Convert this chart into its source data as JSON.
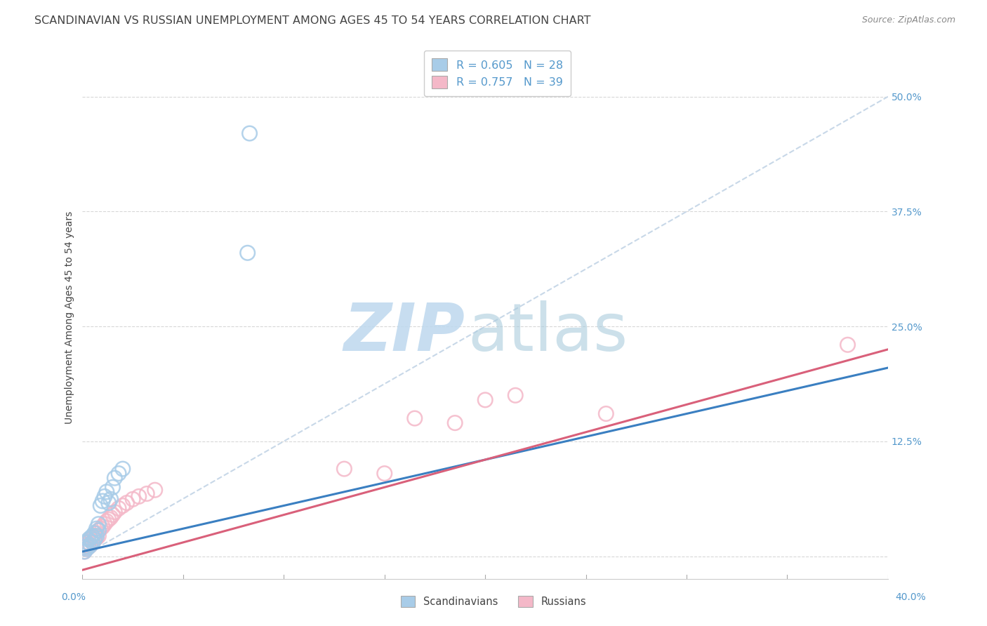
{
  "title": "SCANDINAVIAN VS RUSSIAN UNEMPLOYMENT AMONG AGES 45 TO 54 YEARS CORRELATION CHART",
  "source": "Source: ZipAtlas.com",
  "ylabel": "Unemployment Among Ages 45 to 54 years",
  "yticks": [
    0.0,
    0.125,
    0.25,
    0.375,
    0.5
  ],
  "ytick_labels": [
    "",
    "12.5%",
    "25.0%",
    "37.5%",
    "50.0%"
  ],
  "xlim": [
    0.0,
    0.4
  ],
  "ylim": [
    -0.025,
    0.545
  ],
  "blue_line": [
    0.0,
    0.005,
    0.4,
    0.205
  ],
  "pink_line": [
    0.0,
    -0.015,
    0.4,
    0.225
  ],
  "diag_line": [
    0.0,
    0.0,
    0.4,
    0.5
  ],
  "scandinavians_x": [
    0.001,
    0.001,
    0.002,
    0.002,
    0.003,
    0.003,
    0.004,
    0.004,
    0.005,
    0.005,
    0.006,
    0.006,
    0.007,
    0.007,
    0.008,
    0.008,
    0.009,
    0.01,
    0.011,
    0.012,
    0.013,
    0.014,
    0.015,
    0.016,
    0.018,
    0.02,
    0.082,
    0.083
  ],
  "scandinavians_y": [
    0.005,
    0.01,
    0.008,
    0.015,
    0.01,
    0.018,
    0.012,
    0.02,
    0.015,
    0.022,
    0.018,
    0.025,
    0.022,
    0.03,
    0.028,
    0.035,
    0.055,
    0.06,
    0.065,
    0.07,
    0.058,
    0.062,
    0.075,
    0.085,
    0.09,
    0.095,
    0.33,
    0.46
  ],
  "russians_x": [
    0.001,
    0.001,
    0.002,
    0.002,
    0.003,
    0.003,
    0.004,
    0.004,
    0.005,
    0.005,
    0.006,
    0.006,
    0.007,
    0.007,
    0.008,
    0.008,
    0.009,
    0.01,
    0.011,
    0.012,
    0.013,
    0.014,
    0.015,
    0.016,
    0.018,
    0.02,
    0.022,
    0.025,
    0.028,
    0.032,
    0.036,
    0.13,
    0.15,
    0.165,
    0.185,
    0.2,
    0.215,
    0.26,
    0.38
  ],
  "russians_y": [
    0.005,
    0.01,
    0.008,
    0.012,
    0.01,
    0.015,
    0.012,
    0.018,
    0.015,
    0.02,
    0.018,
    0.022,
    0.02,
    0.025,
    0.022,
    0.028,
    0.03,
    0.032,
    0.035,
    0.038,
    0.04,
    0.042,
    0.045,
    0.048,
    0.052,
    0.055,
    0.058,
    0.062,
    0.065,
    0.068,
    0.072,
    0.095,
    0.09,
    0.15,
    0.145,
    0.17,
    0.175,
    0.155,
    0.23
  ],
  "blue_scatter_color": "#a8cce8",
  "pink_scatter_color": "#f4b8c8",
  "blue_line_color": "#3a7fc1",
  "pink_line_color": "#d9607a",
  "diag_color": "#c8d8e8",
  "grid_color": "#d8d8d8",
  "title_color": "#444444",
  "tick_color": "#5599cc",
  "source_color": "#888888",
  "watermark_zip_color": "#bdd8ee",
  "watermark_atlas_color": "#aaccdd"
}
